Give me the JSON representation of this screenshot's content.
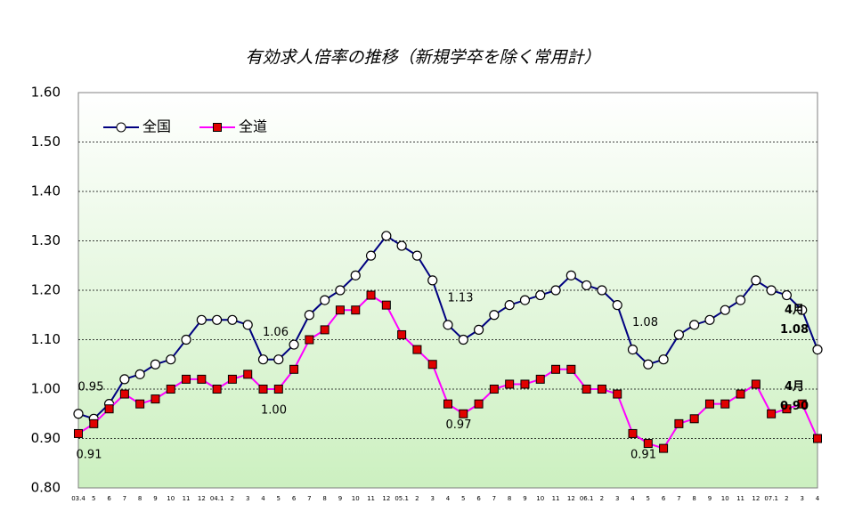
{
  "chart_data": {
    "type": "line",
    "title": "有効求人倍率の推移（新規学卒を除く常用計）",
    "categories": [
      "03.4",
      "5",
      "6",
      "7",
      "8",
      "9",
      "10",
      "11",
      "12",
      "04.1",
      "2",
      "3",
      "4",
      "5",
      "6",
      "7",
      "8",
      "9",
      "10",
      "11",
      "12",
      "05.1",
      "2",
      "3",
      "4",
      "5",
      "6",
      "7",
      "8",
      "9",
      "10",
      "11",
      "12",
      "06.1",
      "2",
      "3",
      "4",
      "5",
      "6",
      "7",
      "8",
      "9",
      "10",
      "11",
      "12",
      "07.1",
      "2",
      "3",
      "4"
    ],
    "series": [
      {
        "name": "全国",
        "color": "#000080",
        "marker": "circle",
        "values": [
          0.95,
          0.94,
          0.97,
          1.02,
          1.03,
          1.05,
          1.06,
          1.1,
          1.14,
          1.14,
          1.14,
          1.13,
          1.06,
          1.06,
          1.09,
          1.15,
          1.18,
          1.2,
          1.23,
          1.27,
          1.31,
          1.29,
          1.27,
          1.22,
          1.13,
          1.1,
          1.12,
          1.15,
          1.17,
          1.18,
          1.19,
          1.2,
          1.23,
          1.21,
          1.2,
          1.17,
          1.08,
          1.05,
          1.06,
          1.11,
          1.13,
          1.14,
          1.16,
          1.18,
          1.22,
          1.2,
          1.19,
          1.16,
          1.08
        ],
        "value_labels": [
          "0.95",
          null,
          null,
          null,
          null,
          null,
          null,
          null,
          null,
          null,
          null,
          null,
          "1.06",
          null,
          null,
          null,
          null,
          null,
          null,
          null,
          null,
          null,
          null,
          null,
          "1.13",
          null,
          null,
          null,
          null,
          null,
          null,
          null,
          null,
          null,
          null,
          null,
          "1.08",
          null,
          null,
          null,
          null,
          null,
          null,
          null,
          null,
          null,
          null,
          null,
          "1.08"
        ]
      },
      {
        "name": "全道",
        "color": "#ff00ff",
        "marker": "square",
        "values": [
          0.91,
          0.93,
          0.96,
          0.99,
          0.97,
          0.98,
          1.0,
          1.02,
          1.02,
          1.0,
          1.02,
          1.03,
          1.0,
          1.0,
          1.04,
          1.1,
          1.12,
          1.16,
          1.16,
          1.19,
          1.17,
          1.11,
          1.08,
          1.05,
          0.97,
          0.95,
          0.97,
          1.0,
          1.01,
          1.01,
          1.02,
          1.04,
          1.04,
          1.0,
          1.0,
          0.99,
          0.91,
          0.89,
          0.88,
          0.93,
          0.94,
          0.97,
          0.97,
          0.99,
          1.01,
          0.95,
          0.96,
          0.97,
          0.9
        ],
        "value_labels": [
          "0.91",
          null,
          null,
          null,
          null,
          null,
          null,
          null,
          null,
          null,
          null,
          null,
          "1.00",
          null,
          null,
          null,
          null,
          null,
          null,
          null,
          null,
          null,
          null,
          null,
          "0.97",
          null,
          null,
          null,
          null,
          null,
          null,
          null,
          null,
          null,
          null,
          null,
          "0.91",
          null,
          null,
          null,
          null,
          null,
          null,
          null,
          null,
          null,
          null,
          null,
          "0.90"
        ]
      }
    ],
    "annotations": [
      "4月",
      "4月"
    ],
    "ylim": [
      0.8,
      1.6
    ],
    "yticks": [
      {
        "value": 0.8,
        "label": "0.80"
      },
      {
        "value": 0.9,
        "label": "0.90"
      },
      {
        "value": 1.0,
        "label": "1.00"
      },
      {
        "value": 1.1,
        "label": "1.10"
      },
      {
        "value": 1.2,
        "label": "1.20"
      },
      {
        "value": 1.3,
        "label": "1.30"
      },
      {
        "value": 1.4,
        "label": "1.40"
      },
      {
        "value": 1.5,
        "label": "1.50"
      },
      {
        "value": 1.6,
        "label": "1.60"
      }
    ],
    "grid": true
  }
}
